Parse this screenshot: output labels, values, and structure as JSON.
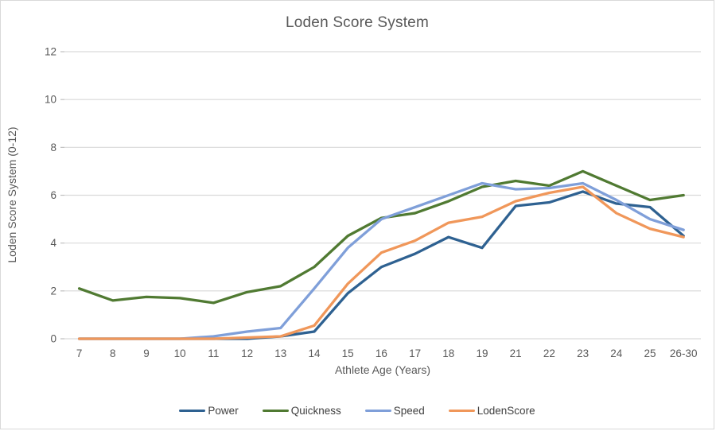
{
  "window": {
    "background": "#FFFFFF",
    "border_color": "#D9D9D9"
  },
  "chart_data": {
    "type": "line",
    "title": "Loden Score System",
    "xlabel": "Athlete Age (Years)",
    "ylabel": "Loden  Score System (0-12)",
    "categories": [
      "7",
      "8",
      "9",
      "10",
      "11",
      "12",
      "13",
      "14",
      "15",
      "16",
      "17",
      "18",
      "19",
      "21",
      "22",
      "23",
      "24",
      "25",
      "26-30"
    ],
    "series": [
      {
        "name": "Power",
        "color": "#2E6191",
        "values": [
          0,
          0,
          0,
          0,
          0,
          0,
          0.1,
          0.3,
          1.9,
          3.0,
          3.55,
          4.25,
          3.8,
          5.55,
          5.7,
          6.15,
          5.65,
          5.5,
          4.3
        ]
      },
      {
        "name": "Quickness",
        "color": "#507A32",
        "values": [
          2.1,
          1.6,
          1.75,
          1.7,
          1.5,
          1.95,
          2.2,
          3.0,
          4.3,
          5.05,
          5.25,
          5.75,
          6.35,
          6.6,
          6.4,
          7.0,
          6.4,
          5.8,
          6.0
        ]
      },
      {
        "name": "Speed",
        "color": "#7F9FD9",
        "values": [
          0,
          0,
          0,
          0,
          0.1,
          0.3,
          0.45,
          2.1,
          3.8,
          5.0,
          5.5,
          6.0,
          6.5,
          6.25,
          6.3,
          6.5,
          5.8,
          5.0,
          4.55
        ]
      },
      {
        "name": "LodenScore",
        "color": "#F0975A",
        "values": [
          0,
          0,
          0,
          0,
          0,
          0.05,
          0.1,
          0.55,
          2.3,
          3.6,
          4.1,
          4.85,
          5.1,
          5.75,
          6.1,
          6.35,
          5.25,
          4.6,
          4.25
        ]
      }
    ],
    "y_ticks": [
      0,
      2,
      4,
      6,
      8,
      10,
      12
    ],
    "ylim": [
      0,
      12
    ],
    "grid": true,
    "legend_position": "bottom",
    "gridline_color": "#D9D9D9",
    "axis_line_color": "#D9D9D9",
    "tick_color": "#BFBFBF",
    "text_color": "#595959",
    "legend_text_color": "#404040"
  }
}
